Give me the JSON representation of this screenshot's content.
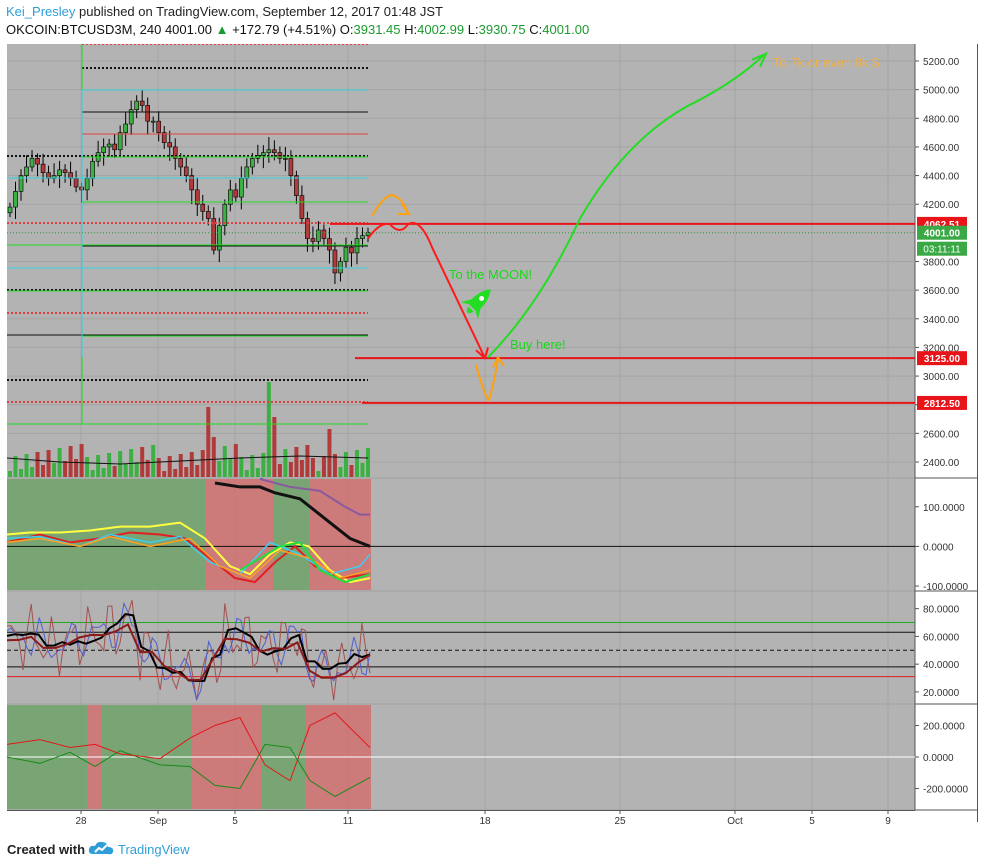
{
  "header": {
    "author": "Kei_Presley",
    "published": "published on TradingView.com, September 12, 2017 01:48 JST",
    "symbol": "OKCOIN:BTCUSD3M, 240",
    "last": "4001.00",
    "change": "+172.79 (+4.51%)",
    "o_label": "O:",
    "o_value": "3931.45",
    "h_label": "H:",
    "h_value": "4002.99",
    "l_label": "L:",
    "l_value": "3930.75",
    "c_label": "C:",
    "c_value": "4001.00"
  },
  "footer": {
    "created_with": "Created with",
    "brand": "TradingView"
  },
  "colors": {
    "panel_bg": "#b3b3b3",
    "axis_bg": "#ffffff",
    "up_candle": "#3cb043",
    "down_candle": "#b13b3b",
    "hline_red": "#ff0000",
    "green_projection": "#22dd22",
    "red_projection": "#ff1a1a",
    "orange_projection": "#ffa010",
    "price_badge_red": "#e8141a",
    "price_badge_green": "#3aa845",
    "annotation_green": "#18d818",
    "annotation_orange": "#f5b041"
  },
  "annotations": {
    "moon": "To the MOON!",
    "buy": "Buy here!",
    "target": "To 7k or even 8k $"
  },
  "chart_data": [
    {
      "type": "candlestick",
      "title": "OKCOIN:BTCUSD3M, 240",
      "x_ticks": [
        "28",
        "Sep",
        "5",
        "11",
        "18",
        "25",
        "Oct",
        "5",
        "9"
      ],
      "y_ticks": [
        "5200.00",
        "5000.00",
        "4800.00",
        "4600.00",
        "4400.00",
        "4200.00",
        "3800.00",
        "3600.00",
        "3400.00",
        "3200.00",
        "3000.00",
        "2800.00",
        "2600.00",
        "2400.00"
      ],
      "ylim": [
        2300,
        5300
      ],
      "last_price": 4001.0,
      "countdown": "03:11:11",
      "horizontal_levels": [
        {
          "value": 4062.51,
          "label": "4062.51",
          "color": "#e8141a"
        },
        {
          "value": 3125.0,
          "label": "3125.00",
          "color": "#e8141a"
        },
        {
          "value": 2812.5,
          "label": "2812.50",
          "color": "#e8141a"
        }
      ],
      "last_badge": {
        "label": "4001.00",
        "color": "#3aa845"
      },
      "price_path_close": [
        4180,
        4290,
        4400,
        4460,
        4520,
        4480,
        4420,
        4380,
        4400,
        4440,
        4420,
        4380,
        4320,
        4300,
        4380,
        4500,
        4560,
        4600,
        4620,
        4580,
        4700,
        4760,
        4860,
        4920,
        4890,
        4780,
        4780,
        4700,
        4630,
        4600,
        4520,
        4460,
        4400,
        4300,
        4200,
        4150,
        4100,
        3880,
        4050,
        4200,
        4300,
        4250,
        4380,
        4460,
        4520,
        4540,
        4560,
        4580,
        4560,
        4520,
        4520,
        4400,
        4260,
        4100,
        3960,
        3940,
        4020,
        3960,
        3880,
        3720,
        3800,
        3900,
        3860,
        3960,
        3980,
        4001
      ],
      "projection": {
        "orange_high": 4250,
        "red_peak": 4080,
        "buy_level": 3125,
        "orange_low": 2830,
        "green_target": 5250
      }
    },
    {
      "type": "line",
      "name": "oscillator-1",
      "y_ticks": [
        "100.0000",
        "0.0000",
        "-100.0000"
      ],
      "ylim": [
        -110,
        170
      ]
    },
    {
      "type": "line",
      "name": "oscillator-2",
      "y_ticks": [
        "80.0000",
        "60.0000",
        "40.0000",
        "20.0000"
      ],
      "ylim": [
        12,
        92
      ],
      "levels": [
        70,
        63,
        50,
        38,
        31
      ]
    },
    {
      "type": "line",
      "name": "oscillator-3",
      "y_ticks": [
        "200.0000",
        "0.0000",
        "-200.0000"
      ],
      "ylim": [
        -330,
        330
      ]
    }
  ]
}
